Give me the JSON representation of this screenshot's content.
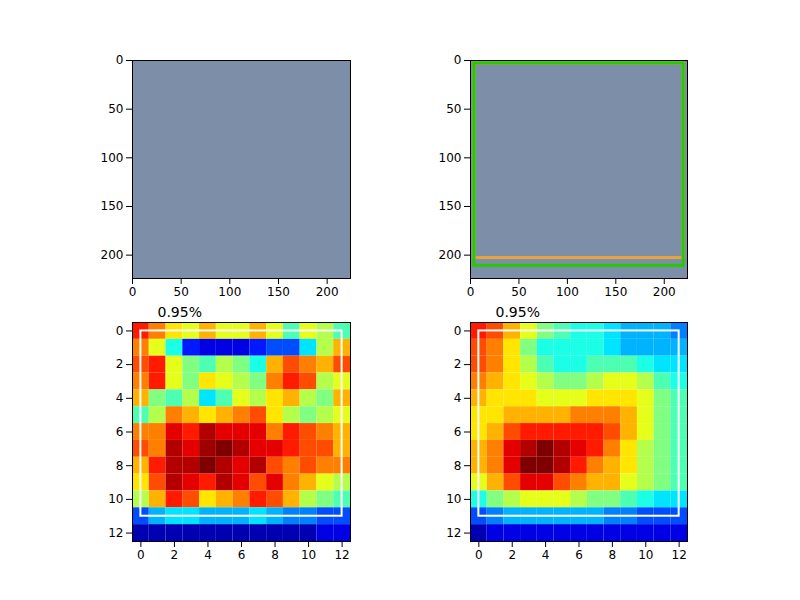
{
  "chart_data": [
    {
      "type": "image",
      "xlim": [
        0,
        224
      ],
      "ylim": [
        224,
        0
      ],
      "xticks": [
        0,
        50,
        100,
        150,
        200
      ],
      "yticks": [
        0,
        50,
        100,
        150,
        200
      ]
    },
    {
      "type": "image",
      "xlim": [
        0,
        224
      ],
      "ylim": [
        224,
        0
      ],
      "xticks": [
        0,
        50,
        100,
        150,
        200
      ],
      "yticks": [
        0,
        50,
        100,
        150,
        200
      ],
      "boxes": [
        {
          "color": "#e8a33c",
          "x": [
            4,
            220
          ],
          "y": [
            3,
            203
          ]
        },
        {
          "color": "#22cc00",
          "x": [
            4,
            220
          ],
          "y": [
            3,
            211
          ]
        }
      ]
    },
    {
      "type": "heatmap",
      "title": "0.95%",
      "xlim": [
        -0.5,
        12.5
      ],
      "ylim": [
        12.5,
        -0.5
      ],
      "xticks": [
        0,
        2,
        4,
        6,
        8,
        10,
        12
      ],
      "yticks": [
        0,
        2,
        4,
        6,
        8,
        10,
        12
      ],
      "color_range": [
        0,
        1
      ],
      "boxes": [
        {
          "color": "#ffffff",
          "x": [
            0,
            12
          ],
          "y": [
            0,
            11
          ]
        }
      ],
      "cells": [
        [
          0.85,
          0.75,
          0.65,
          0.6,
          0.7,
          0.6,
          0.6,
          0.7,
          0.6,
          0.45,
          0.6,
          0.55,
          0.45
        ],
        [
          0.75,
          0.6,
          0.4,
          0.15,
          0.1,
          0.1,
          0.1,
          0.15,
          0.2,
          0.2,
          0.35,
          0.55,
          0.7
        ],
        [
          0.8,
          0.85,
          0.6,
          0.5,
          0.45,
          0.55,
          0.5,
          0.4,
          0.7,
          0.8,
          0.75,
          0.7,
          0.8
        ],
        [
          0.75,
          0.85,
          0.6,
          0.5,
          0.65,
          0.6,
          0.55,
          0.5,
          0.75,
          0.85,
          0.8,
          0.55,
          0.6
        ],
        [
          0.7,
          0.5,
          0.45,
          0.55,
          0.35,
          0.45,
          0.6,
          0.55,
          0.65,
          0.7,
          0.55,
          0.5,
          0.7
        ],
        [
          0.45,
          0.55,
          0.75,
          0.7,
          0.65,
          0.7,
          0.75,
          0.8,
          0.65,
          0.55,
          0.5,
          0.55,
          0.6
        ],
        [
          0.75,
          0.75,
          0.9,
          0.85,
          0.95,
          0.9,
          0.9,
          0.9,
          0.75,
          0.85,
          0.8,
          0.75,
          0.7
        ],
        [
          0.8,
          0.75,
          0.95,
          0.9,
          0.97,
          1.0,
          0.95,
          0.9,
          0.9,
          0.85,
          0.8,
          0.8,
          0.7
        ],
        [
          0.7,
          0.85,
          0.95,
          0.95,
          1.0,
          0.95,
          0.9,
          0.95,
          0.8,
          0.75,
          0.8,
          0.75,
          0.75
        ],
        [
          0.65,
          0.8,
          0.95,
          0.9,
          0.85,
          0.95,
          0.9,
          0.8,
          0.9,
          0.75,
          0.7,
          0.6,
          0.55
        ],
        [
          0.55,
          0.7,
          0.85,
          0.8,
          0.65,
          0.7,
          0.75,
          0.85,
          0.8,
          0.7,
          0.55,
          0.5,
          0.45
        ],
        [
          0.2,
          0.3,
          0.35,
          0.35,
          0.3,
          0.3,
          0.3,
          0.35,
          0.3,
          0.25,
          0.25,
          0.2,
          0.2
        ],
        [
          0.05,
          0.05,
          0.05,
          0.05,
          0.05,
          0.05,
          0.05,
          0.05,
          0.05,
          0.05,
          0.05,
          0.1,
          0.1
        ]
      ]
    },
    {
      "type": "heatmap",
      "title": "0.95%",
      "xlim": [
        -0.5,
        12.5
      ],
      "ylim": [
        12.5,
        -0.5
      ],
      "xticks": [
        0,
        2,
        4,
        6,
        8,
        10,
        12
      ],
      "yticks": [
        0,
        2,
        4,
        6,
        8,
        10,
        12
      ],
      "color_range": [
        0,
        1
      ],
      "boxes": [
        {
          "color": "#ffffff",
          "x": [
            0,
            12
          ],
          "y": [
            0,
            11
          ]
        }
      ],
      "cells": [
        [
          0.85,
          0.8,
          0.7,
          0.6,
          0.5,
          0.45,
          0.4,
          0.4,
          0.35,
          0.3,
          0.3,
          0.3,
          0.25
        ],
        [
          0.8,
          0.75,
          0.65,
          0.5,
          0.4,
          0.4,
          0.4,
          0.4,
          0.35,
          0.3,
          0.3,
          0.3,
          0.3
        ],
        [
          0.8,
          0.75,
          0.65,
          0.55,
          0.45,
          0.4,
          0.4,
          0.45,
          0.45,
          0.45,
          0.4,
          0.35,
          0.35
        ],
        [
          0.75,
          0.7,
          0.65,
          0.6,
          0.55,
          0.5,
          0.5,
          0.55,
          0.6,
          0.6,
          0.55,
          0.45,
          0.4
        ],
        [
          0.7,
          0.65,
          0.65,
          0.65,
          0.6,
          0.6,
          0.6,
          0.65,
          0.65,
          0.65,
          0.6,
          0.5,
          0.45
        ],
        [
          0.65,
          0.65,
          0.7,
          0.7,
          0.7,
          0.7,
          0.75,
          0.75,
          0.75,
          0.7,
          0.6,
          0.5,
          0.45
        ],
        [
          0.65,
          0.7,
          0.8,
          0.85,
          0.85,
          0.85,
          0.85,
          0.85,
          0.8,
          0.7,
          0.6,
          0.5,
          0.45
        ],
        [
          0.7,
          0.75,
          0.9,
          0.95,
          1.0,
          0.95,
          0.9,
          0.85,
          0.75,
          0.65,
          0.55,
          0.5,
          0.45
        ],
        [
          0.7,
          0.75,
          0.9,
          1.0,
          1.0,
          0.95,
          0.85,
          0.75,
          0.7,
          0.65,
          0.55,
          0.5,
          0.45
        ],
        [
          0.6,
          0.7,
          0.8,
          0.9,
          0.9,
          0.8,
          0.75,
          0.7,
          0.7,
          0.6,
          0.55,
          0.5,
          0.45
        ],
        [
          0.4,
          0.5,
          0.55,
          0.6,
          0.6,
          0.6,
          0.55,
          0.5,
          0.5,
          0.45,
          0.4,
          0.35,
          0.35
        ],
        [
          0.2,
          0.25,
          0.3,
          0.3,
          0.3,
          0.3,
          0.3,
          0.3,
          0.25,
          0.25,
          0.2,
          0.2,
          0.2
        ],
        [
          0.05,
          0.1,
          0.1,
          0.1,
          0.1,
          0.1,
          0.1,
          0.1,
          0.1,
          0.1,
          0.1,
          0.1,
          0.1
        ]
      ]
    }
  ]
}
